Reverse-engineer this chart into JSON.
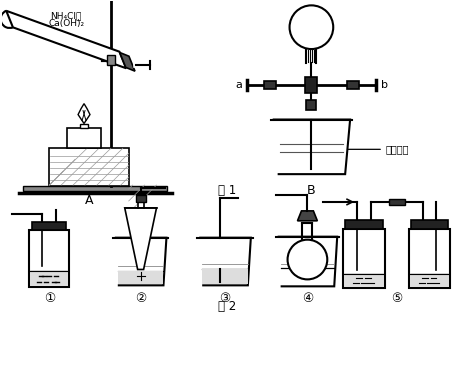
{
  "title_fig1": "图 1",
  "title_fig2": "图 2",
  "label_A": "A",
  "label_B": "B",
  "label_a": "a",
  "label_b": "b",
  "label_solution": "酚酞溶液",
  "label_nh4cl": "NH₄Cl和",
  "label_caoh2": "Ca(OH)₂",
  "labels_fig2": [
    "①",
    "②",
    "③",
    "④",
    "⑤"
  ],
  "line_color": "#000000",
  "bg_color": "#ffffff",
  "line_width": 1.2
}
